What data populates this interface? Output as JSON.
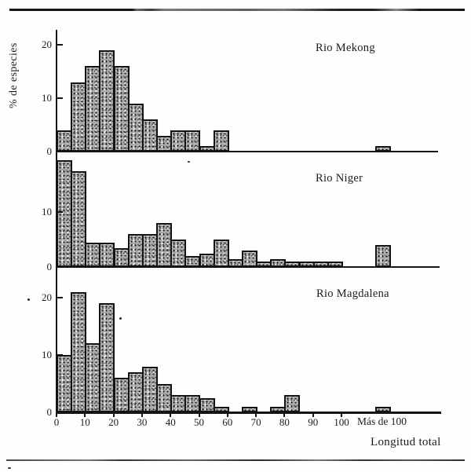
{
  "figure": {
    "y_axis_label": "% de especies",
    "x_axis_label": "Longitud total",
    "x_tick_values": [
      0,
      10,
      20,
      30,
      40,
      50,
      60,
      70,
      80,
      90,
      100
    ],
    "x_overflow_label": "Más de 100",
    "panels": [
      {
        "title": "Rio Mekong",
        "y_tick_values": [
          20,
          10,
          0
        ]
      },
      {
        "title": "Rio Niger",
        "y_tick_values": [
          10,
          0
        ]
      },
      {
        "title": "Rio Magdalena",
        "y_tick_values": [
          20,
          10,
          0
        ]
      }
    ],
    "colors": {
      "ink": "#1c1c1c",
      "bar_fill": "#a9a9a9",
      "background": "#fefefe"
    }
  },
  "chart_data": {
    "type": "bar",
    "subtype": "stacked-panel-histograms",
    "title": "",
    "xlabel": "Longitud total",
    "ylabel": "% de especies",
    "bin_width": 5,
    "categories": [
      "0-5",
      "5-10",
      "10-15",
      "15-20",
      "20-25",
      "25-30",
      "30-35",
      "35-40",
      "40-45",
      "45-50",
      "50-55",
      "55-60",
      "60-65",
      "65-70",
      "70-75",
      "75-80",
      "80-85",
      "85-90",
      "90-95",
      "95-100",
      "Más de 100"
    ],
    "series": [
      {
        "name": "Rio Mekong",
        "values": [
          4,
          13,
          16,
          19,
          16,
          9,
          6,
          3,
          4,
          4,
          1,
          4,
          0,
          0,
          0,
          0,
          0,
          0,
          0,
          0,
          1
        ]
      },
      {
        "name": "Rio Niger",
        "values": [
          19.5,
          17.5,
          4.5,
          4.5,
          3.5,
          6,
          6,
          8,
          5,
          2,
          2.5,
          5,
          1.5,
          3,
          1,
          1.5,
          1,
          1,
          1,
          1,
          4
        ]
      },
      {
        "name": "Rio Magdalena",
        "values": [
          10,
          21,
          12,
          19,
          6,
          7,
          8,
          5,
          3,
          3,
          2.5,
          1,
          0,
          1,
          0,
          1,
          3,
          0,
          0,
          0,
          1
        ]
      }
    ],
    "x_tick_labels": [
      "0",
      "10",
      "20",
      "30",
      "40",
      "50",
      "60",
      "70",
      "80",
      "90",
      "100",
      "Más de 100"
    ],
    "ylim": [
      0,
      22
    ],
    "grid": false,
    "legend": "none (panel titles inside each panel, upper right)"
  }
}
